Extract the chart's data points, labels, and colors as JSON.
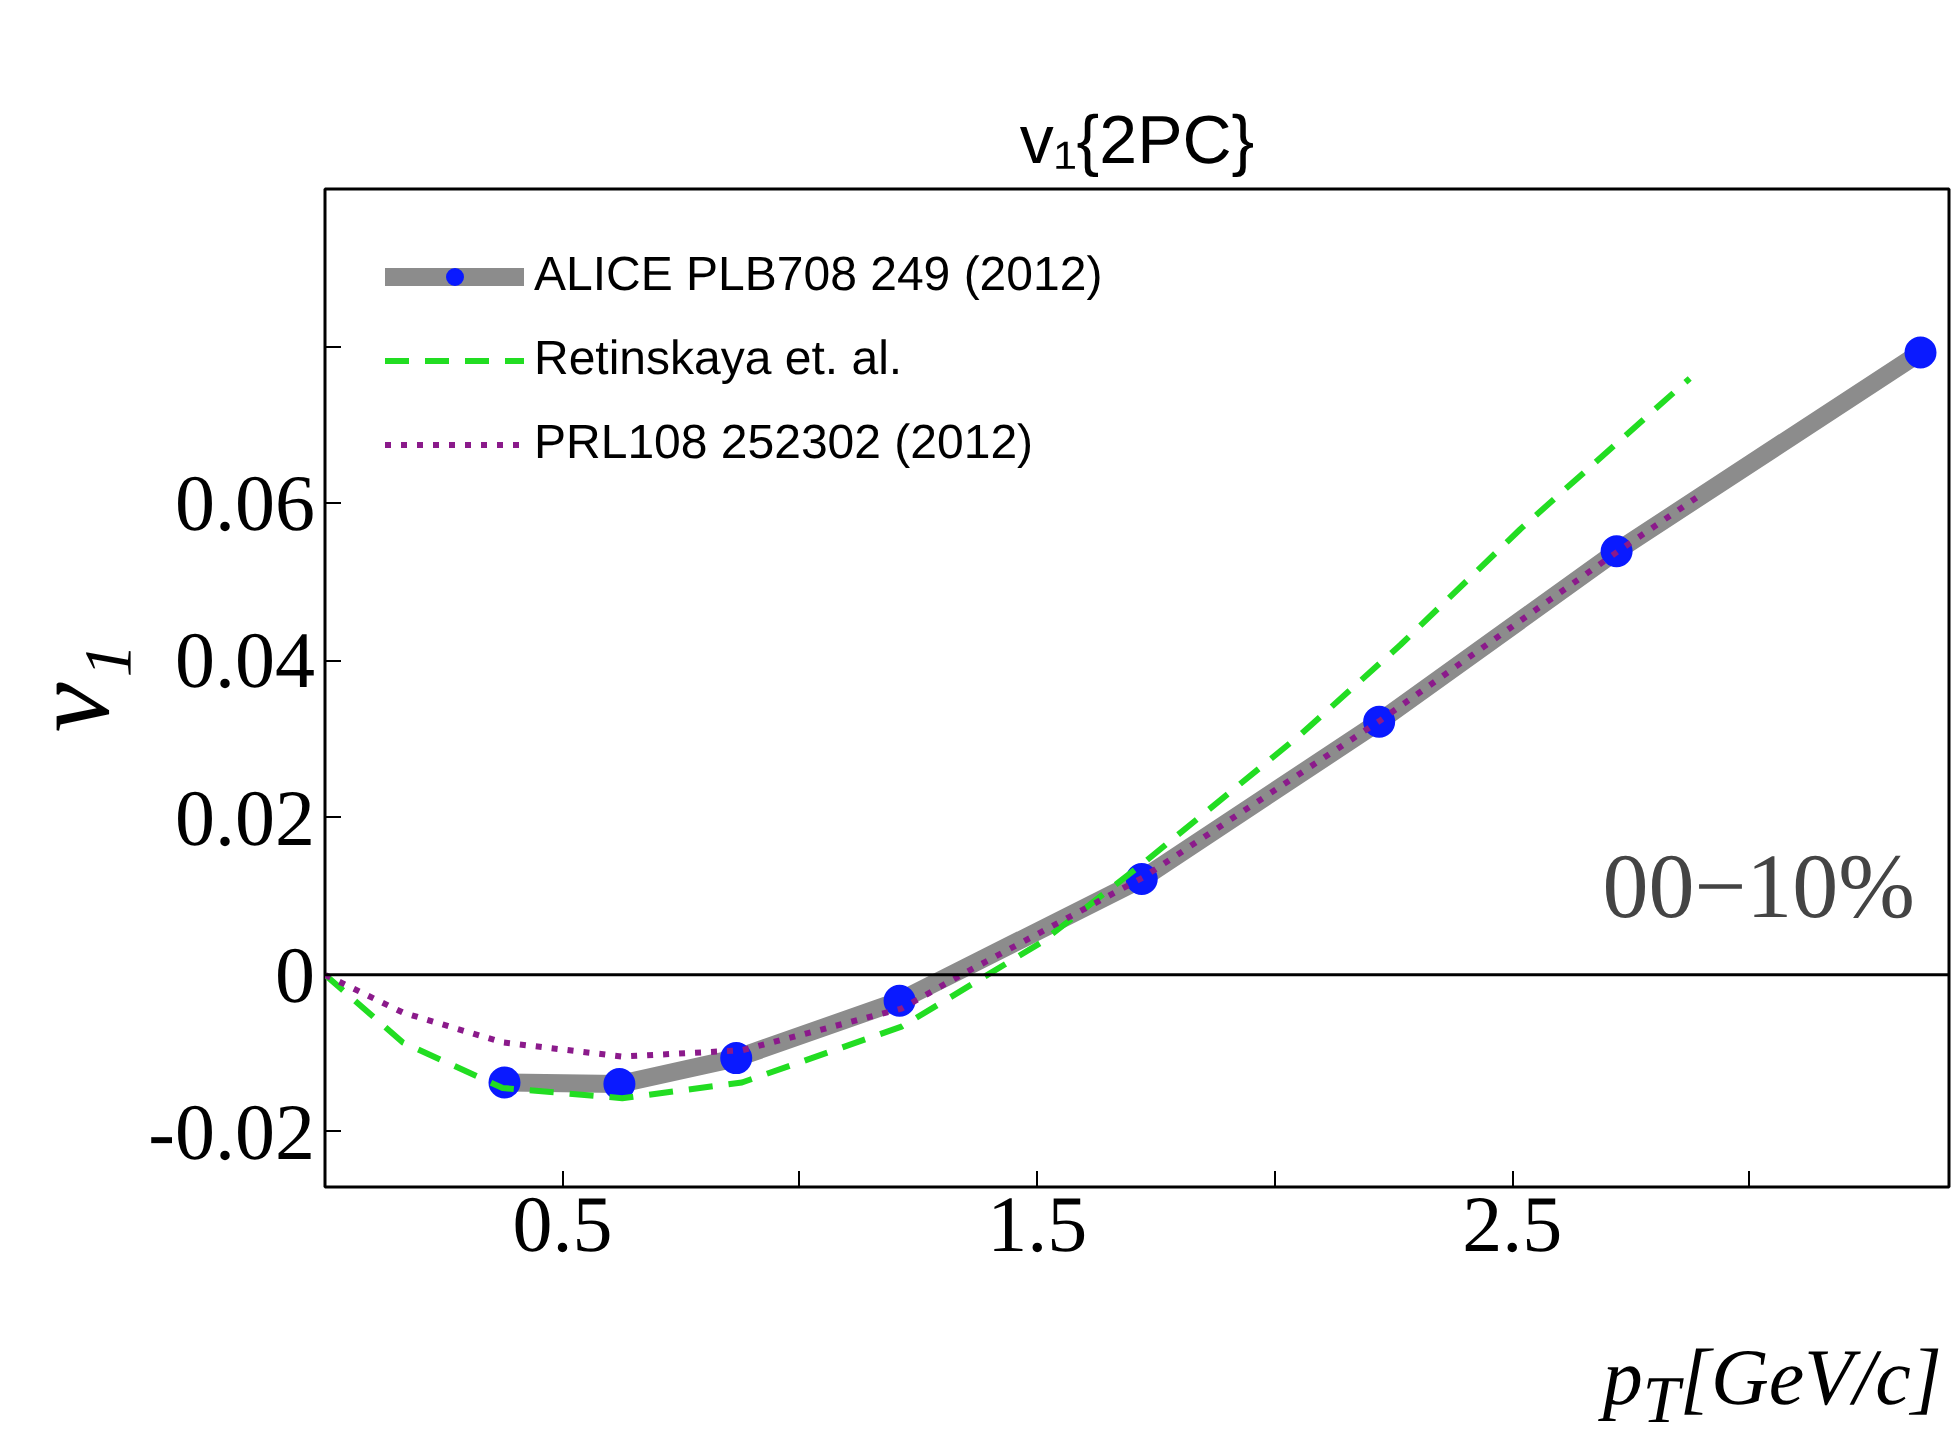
{
  "chart_data": {
    "type": "line",
    "title": "v₁{2PC}",
    "xlabel": "p$_{T}$[GeV/c]",
    "ylabel": "v₁",
    "xlim": [
      0,
      3.42
    ],
    "ylim": [
      -0.027,
      0.1
    ],
    "xticks": [
      0.5,
      {
        "value": 1.0,
        "label": null
      },
      1.5,
      {
        "value": 2.0,
        "label": null
      },
      2.5,
      {
        "value": 3.0,
        "label": null
      }
    ],
    "yticks": [
      -0.02,
      0,
      0.02,
      0.04,
      0.06,
      {
        "value": 0.08,
        "label": null
      }
    ],
    "grid": false,
    "legend": "top left",
    "ref_lines": [
      {
        "axis": "y",
        "value": 0,
        "color": "#000000"
      }
    ],
    "annotations": [
      "00−10%"
    ],
    "series": [
      {
        "name": "ALICE PLB708 249 (2012)",
        "color": "#8c8c8c",
        "marker": "circle",
        "line_style": "solid",
        "x": [
          0.378,
          0.62,
          0.866,
          1.21,
          1.72,
          2.22,
          2.72,
          3.36
        ],
        "values": [
          -0.0137,
          -0.0139,
          -0.0106,
          -0.0033,
          0.0122,
          0.0322,
          0.0539,
          0.0792
        ]
      },
      {
        "name": "Retinskaya et. al.",
        "color": "#22dd22",
        "marker": "none",
        "line_style": "dashed",
        "x": [
          0,
          0.164,
          0.374,
          0.626,
          0.878,
          1.214,
          1.508,
          1.723,
          2.055,
          2.265,
          2.517,
          2.874
        ],
        "values": [
          0,
          -0.0086,
          -0.0144,
          -0.0157,
          -0.0137,
          -0.0066,
          0.0041,
          0.0142,
          0.0306,
          0.042,
          0.0567,
          0.0759
        ]
      },
      {
        "name": "PRL108 252302 (2012)",
        "color": "#8b1a8b",
        "marker": "none",
        "line_style": "dotted",
        "x": [
          0,
          0.164,
          0.374,
          0.626,
          0.878,
          1.214,
          1.34,
          1.723,
          2.223,
          2.723,
          2.895
        ],
        "values": [
          0,
          -0.0048,
          -0.0086,
          -0.0104,
          -0.0096,
          -0.0043,
          0,
          0.0124,
          0.0324,
          0.0539,
          0.061
        ]
      }
    ]
  }
}
